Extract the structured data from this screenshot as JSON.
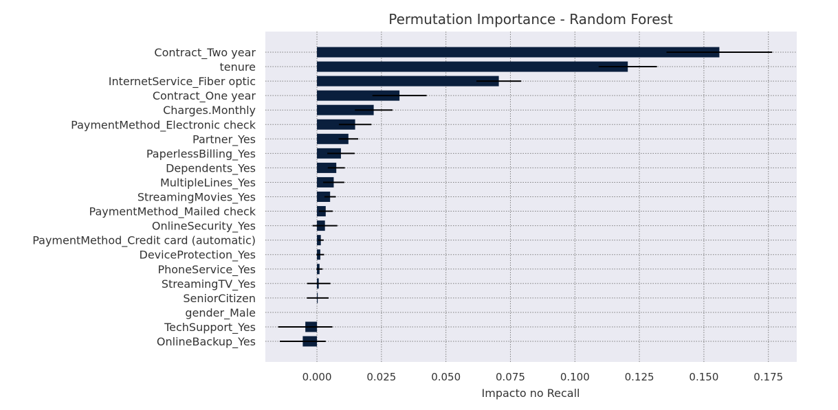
{
  "chart_data": {
    "type": "bar",
    "orientation": "horizontal",
    "title": "Permutation Importance - Random Forest",
    "xlabel": "Impacto no Recall",
    "ylabel": "",
    "xlim": [
      -0.02,
      0.186
    ],
    "xticks": [
      0.0,
      0.025,
      0.05,
      0.075,
      0.1,
      0.125,
      0.15,
      0.175
    ],
    "xtick_labels": [
      "0.000",
      "0.025",
      "0.050",
      "0.075",
      "0.100",
      "0.125",
      "0.150",
      "0.175"
    ],
    "grid": true,
    "bar_color": "#0a1f3d",
    "error_color": "#000000",
    "plot_background": "#eaeaf2",
    "grid_color": "#7f7f7f",
    "categories": [
      "Contract_Two year",
      "tenure",
      "InternetService_Fiber optic",
      "Contract_One year",
      "Charges.Monthly",
      "PaymentMethod_Electronic check",
      "Partner_Yes",
      "PaperlessBilling_Yes",
      "Dependents_Yes",
      "MultipleLines_Yes",
      "StreamingMovies_Yes",
      "PaymentMethod_Mailed check",
      "OnlineSecurity_Yes",
      "PaymentMethod_Credit card (automatic)",
      "DeviceProtection_Yes",
      "PhoneService_Yes",
      "StreamingTV_Yes",
      "SeniorCitizen",
      "gender_Male",
      "TechSupport_Yes",
      "OnlineBackup_Yes"
    ],
    "values": [
      0.156,
      0.1205,
      0.0705,
      0.032,
      0.022,
      0.0148,
      0.0122,
      0.0093,
      0.0075,
      0.0065,
      0.0051,
      0.0034,
      0.0031,
      0.0015,
      0.0013,
      0.001,
      0.0007,
      0.0003,
      0.0,
      -0.0045,
      -0.0055
    ],
    "errors": [
      0.0205,
      0.0113,
      0.0087,
      0.0105,
      0.0073,
      0.0063,
      0.0038,
      0.0053,
      0.0033,
      0.0041,
      0.0022,
      0.0027,
      0.0048,
      0.0011,
      0.0015,
      0.0012,
      0.0045,
      0.0042,
      0.0,
      0.0105,
      0.0089
    ]
  }
}
